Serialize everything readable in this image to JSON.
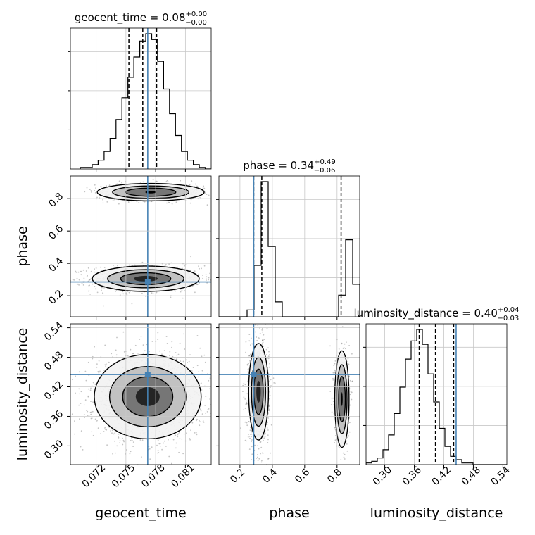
{
  "colors": {
    "truth": "#4682b4",
    "hist": "#000000",
    "grid": "#c8c8c8",
    "scatter": "#555555"
  },
  "chart_data": {
    "type": "corner",
    "parameters": [
      {
        "name": "geocent_time",
        "title": "geocent_time = 0.08",
        "title_sup": "+0.00",
        "title_sub": "−0.00",
        "axis_label": "geocent_time",
        "lim": [
          0.0694,
          0.0836
        ],
        "ticks": [
          0.072,
          0.075,
          0.078,
          0.081
        ],
        "tick_labels": [
          "0.072",
          "0.075",
          "0.078",
          "0.081"
        ],
        "truth": 0.0772,
        "quantiles": [
          0.0753,
          0.0767,
          0.0781
        ],
        "hist_edges_start": 0.0704,
        "hist_bin_width": 0.0006,
        "hist_counts": [
          1,
          1,
          3,
          6,
          12,
          21,
          34,
          49,
          63,
          77,
          88,
          93,
          89,
          74,
          55,
          38,
          23,
          12,
          6,
          3,
          1,
          0
        ]
      },
      {
        "name": "phase",
        "title": "phase = 0.34",
        "title_sup": "+0.49",
        "title_sub": "−0.06",
        "axis_label": "phase",
        "lim": [
          0.07,
          0.94
        ],
        "ticks": [
          0.2,
          0.4,
          0.6,
          0.8
        ],
        "tick_labels": [
          "0.2",
          "0.4",
          "0.6",
          "0.8"
        ],
        "truth": 0.285,
        "quantiles": [
          0.285,
          0.335,
          0.825
        ],
        "hist_edges_start": 0.07,
        "hist_bin_width": 0.0435,
        "hist_counts": [
          0,
          0,
          0,
          0,
          5,
          38,
          100,
          52,
          11,
          0,
          0,
          0,
          0,
          0,
          0,
          0,
          0,
          16,
          57,
          24
        ]
      },
      {
        "name": "luminosity_distance",
        "title": "luminosity_distance = 0.40",
        "title_sup": "+0.04",
        "title_sub": "−0.03",
        "axis_label": "luminosity_distance",
        "lim": [
          0.262,
          0.548
        ],
        "ticks": [
          0.3,
          0.36,
          0.42,
          0.48,
          0.54
        ],
        "tick_labels": [
          "0.30",
          "0.36",
          "0.42",
          "0.48",
          "0.54"
        ],
        "truth": 0.445,
        "quantiles": [
          0.37,
          0.403,
          0.44
        ],
        "hist_edges_start": 0.262,
        "hist_bin_width": 0.01144,
        "hist_counts": [
          1,
          2,
          4,
          9,
          18,
          31,
          47,
          64,
          75,
          82,
          73,
          55,
          38,
          22,
          11,
          5,
          3,
          1,
          1,
          0,
          0,
          0,
          0,
          0,
          0
        ]
      }
    ],
    "pairs": [
      {
        "x": "geocent_time",
        "y": "phase",
        "modes": [
          {
            "cx": 0.077,
            "cy": 0.305,
            "sx": 0.0022,
            "sy": 0.032,
            "weight": 0.68
          },
          {
            "cx": 0.0775,
            "cy": 0.84,
            "sx": 0.0022,
            "sy": 0.022,
            "weight": 0.32
          }
        ]
      },
      {
        "x": "geocent_time",
        "y": "luminosity_distance",
        "modes": [
          {
            "cx": 0.0772,
            "cy": 0.4,
            "sx": 0.0022,
            "sy": 0.035,
            "weight": 1.0
          }
        ]
      },
      {
        "x": "phase",
        "y": "luminosity_distance",
        "modes": [
          {
            "cx": 0.315,
            "cy": 0.41,
            "sx": 0.025,
            "sy": 0.04,
            "weight": 0.68
          },
          {
            "cx": 0.83,
            "cy": 0.395,
            "sx": 0.018,
            "sy": 0.04,
            "weight": 0.32
          }
        ]
      }
    ],
    "grid": true
  }
}
